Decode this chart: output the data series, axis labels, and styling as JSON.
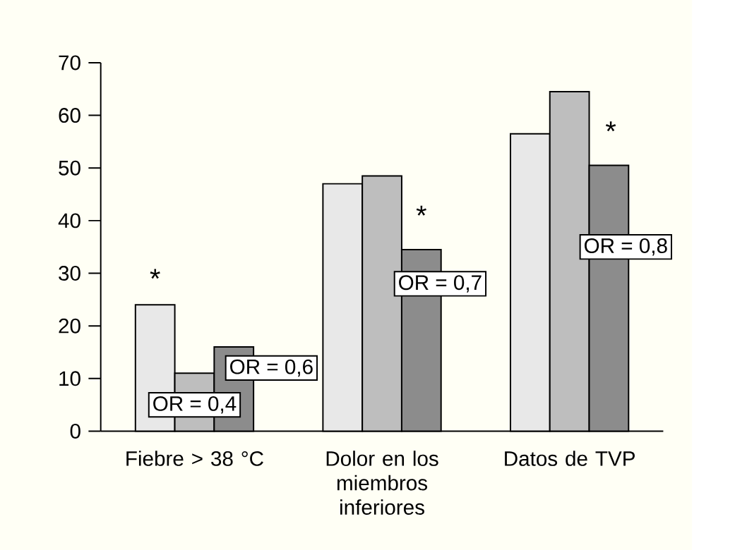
{
  "chart_data": {
    "type": "bar",
    "categories": [
      "Fiebre > 38 °C",
      "Dolor en los miembros inferiores",
      "Datos de TVP"
    ],
    "series": [
      {
        "color": "#e8e8e8",
        "values": [
          24,
          47,
          56.5
        ]
      },
      {
        "color": "#bebebe",
        "values": [
          11,
          48.5,
          64.5
        ]
      },
      {
        "color": "#8c8c8c",
        "values": [
          16,
          34.5,
          50.5
        ]
      }
    ],
    "ylim": [
      0,
      70
    ],
    "yticks": [
      0,
      10,
      20,
      30,
      40,
      50,
      60,
      70
    ],
    "grid": false,
    "annotations": [
      "*",
      "OR = 0,4",
      "OR = 0,6",
      "*",
      "OR = 0,7",
      "*",
      "OR = 0,8"
    ]
  }
}
